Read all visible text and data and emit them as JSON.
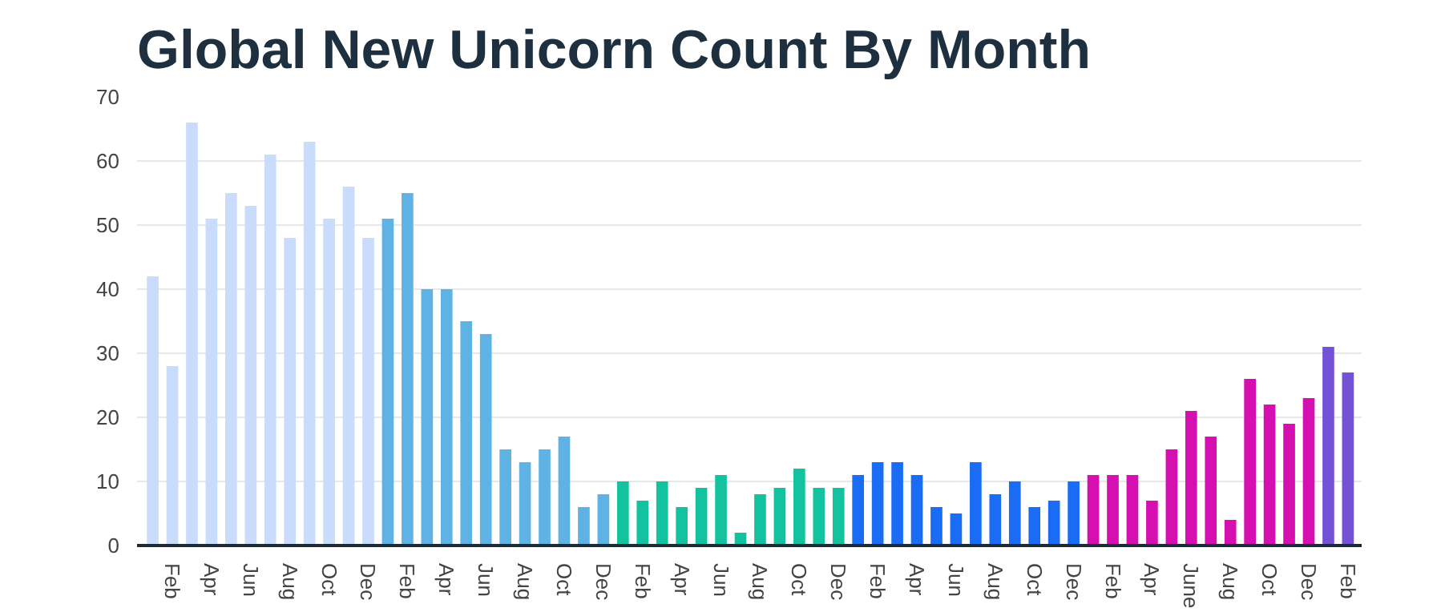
{
  "chart_data": {
    "type": "bar",
    "title": "Global New Unicorn Count By Month",
    "categories": [
      null,
      "Feb",
      null,
      "Apr",
      null,
      "Jun",
      null,
      "Aug",
      null,
      "Oct",
      null,
      "Dec",
      null,
      "Feb",
      null,
      "Apr",
      null,
      "Jun",
      null,
      "Aug",
      null,
      "Oct",
      null,
      "Dec",
      null,
      "Feb",
      null,
      "Apr",
      null,
      "Jun",
      null,
      "Aug",
      null,
      "Oct",
      null,
      "Dec",
      null,
      "Feb",
      null,
      "Apr",
      null,
      "Jun",
      null,
      "Aug",
      null,
      "Oct",
      null,
      "Dec",
      null,
      "Feb",
      null,
      "Apr",
      null,
      "June",
      null,
      "Aug",
      null,
      "Oct",
      null,
      "Dec",
      null,
      "Feb"
    ],
    "values": [
      42,
      28,
      66,
      51,
      55,
      53,
      61,
      48,
      63,
      51,
      56,
      48,
      51,
      55,
      40,
      40,
      35,
      33,
      15,
      13,
      15,
      17,
      6,
      8,
      10,
      7,
      10,
      6,
      9,
      11,
      2,
      8,
      9,
      12,
      9,
      9,
      11,
      13,
      13,
      11,
      6,
      5,
      13,
      8,
      10,
      6,
      7,
      10,
      11,
      11,
      11,
      7,
      15,
      21,
      17,
      4,
      26,
      22,
      19,
      23,
      31,
      27
    ],
    "colors": [
      "#c9dcfc",
      "#c9dcfc",
      "#c9dcfc",
      "#c9dcfc",
      "#c9dcfc",
      "#c9dcfc",
      "#c9dcfc",
      "#c9dcfc",
      "#c9dcfc",
      "#c9dcfc",
      "#c9dcfc",
      "#c9dcfc",
      "#5fb3e4",
      "#5fb3e4",
      "#5fb3e4",
      "#5fb3e4",
      "#5fb3e4",
      "#5fb3e4",
      "#5fb3e4",
      "#5fb3e4",
      "#5fb3e4",
      "#5fb3e4",
      "#5fb3e4",
      "#5fb3e4",
      "#13c29e",
      "#13c29e",
      "#13c29e",
      "#13c29e",
      "#13c29e",
      "#13c29e",
      "#13c29e",
      "#13c29e",
      "#13c29e",
      "#13c29e",
      "#13c29e",
      "#13c29e",
      "#1a6cf5",
      "#1a6cf5",
      "#1a6cf5",
      "#1a6cf5",
      "#1a6cf5",
      "#1a6cf5",
      "#1a6cf5",
      "#1a6cf5",
      "#1a6cf5",
      "#1a6cf5",
      "#1a6cf5",
      "#1a6cf5",
      "#d60fb0",
      "#d60fb0",
      "#d60fb0",
      "#d60fb0",
      "#d60fb0",
      "#d60fb0",
      "#d60fb0",
      "#d60fb0",
      "#d60fb0",
      "#d60fb0",
      "#d60fb0",
      "#d60fb0",
      "#7452d6",
      "#7452d6"
    ],
    "ylim": [
      0,
      70
    ],
    "yticks": [
      0,
      10,
      20,
      30,
      40,
      50,
      60,
      70
    ],
    "grid": "y"
  }
}
